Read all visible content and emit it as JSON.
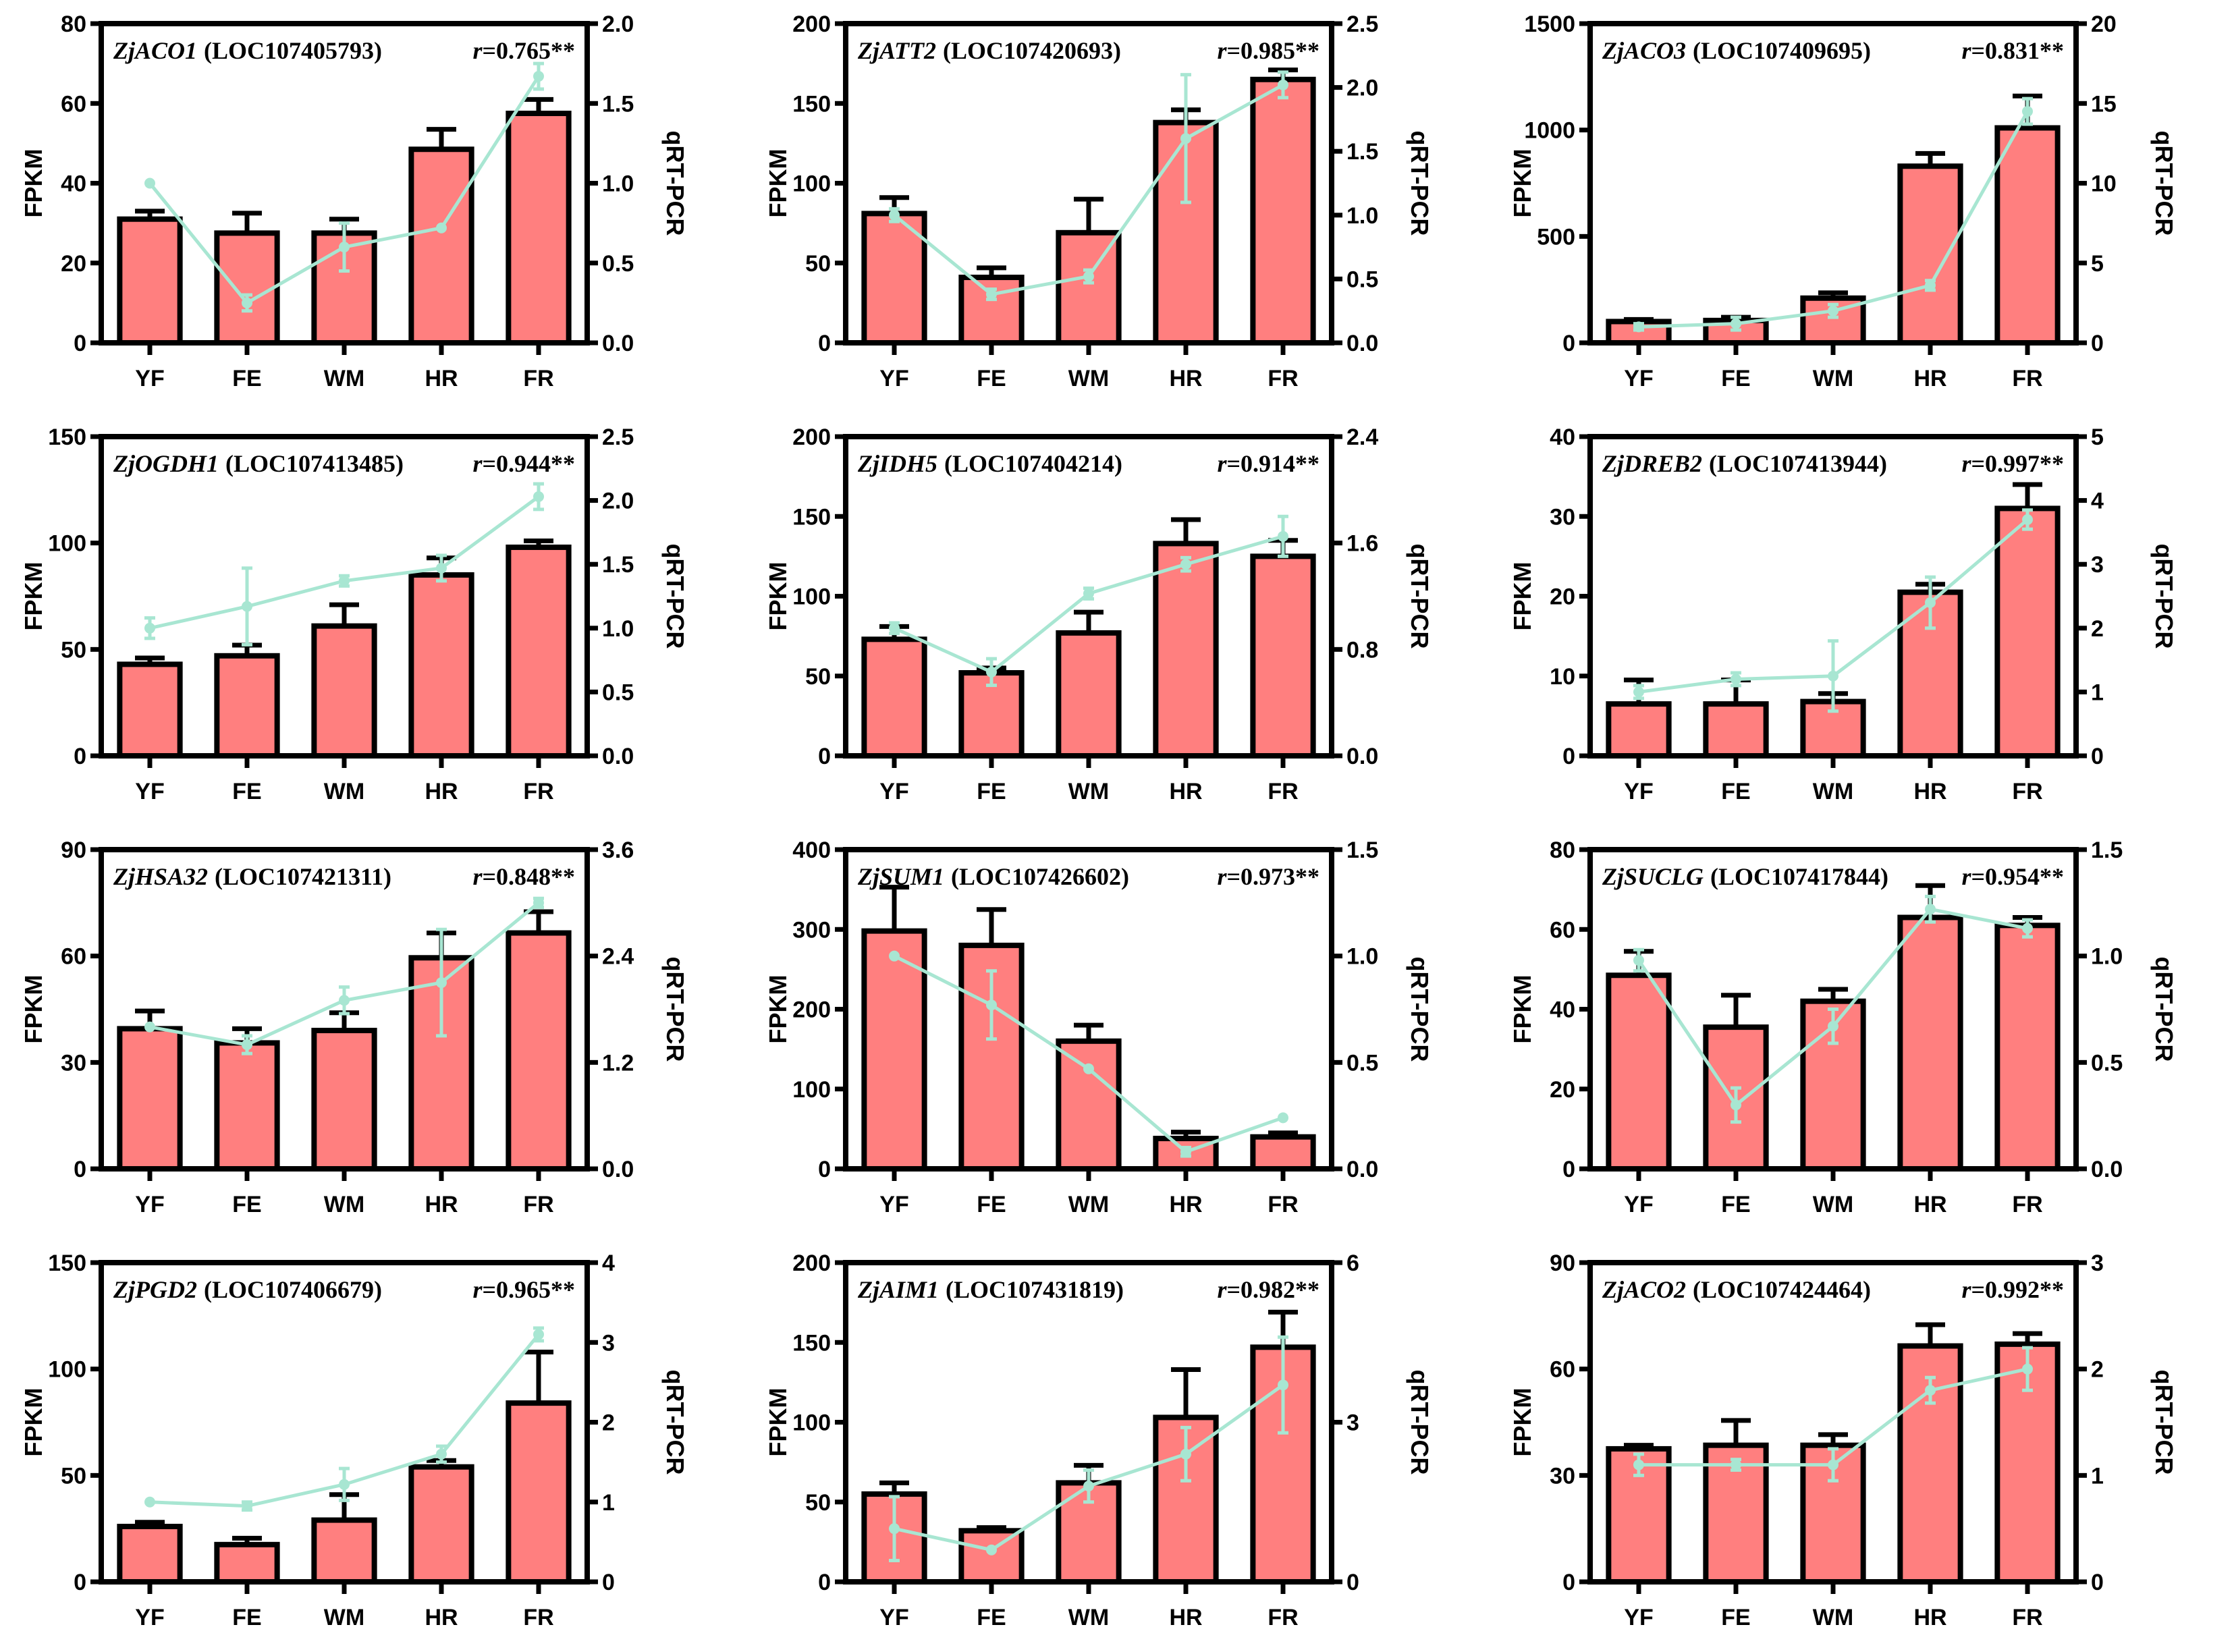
{
  "colors": {
    "bar": "#ff7f7f",
    "line": "#a8e6d2",
    "axis": "#000000"
  },
  "chart_data": [
    {
      "type": "bar+line",
      "gene": "ZjACO1",
      "locus": "(LOC107405793)",
      "r_label": "r",
      "r_value": "=0.765**",
      "categories": [
        "YF",
        "FE",
        "WM",
        "HR",
        "FR"
      ],
      "ylabel": "FPKM",
      "y2label": "qRT-PCR",
      "ylim": [
        0,
        80
      ],
      "yticks": [
        0,
        20,
        40,
        60,
        80
      ],
      "y2lim": [
        0,
        2.0
      ],
      "y2ticks": [
        "0.0",
        "0.5",
        "1.0",
        "1.5",
        "2.0"
      ],
      "fpkm": [
        31,
        27.5,
        27.5,
        48.5,
        57.5
      ],
      "fpkm_err": [
        2,
        5,
        3.5,
        5,
        3.5
      ],
      "qrt": [
        1.0,
        0.25,
        0.6,
        0.72,
        1.67
      ],
      "qrt_err": [
        0,
        0.05,
        0.15,
        0,
        0.08
      ]
    },
    {
      "type": "bar+line",
      "gene": "ZjATT2",
      "locus": "(LOC107420693)",
      "r_label": "r",
      "r_value": "=0.985**",
      "categories": [
        "YF",
        "FE",
        "WM",
        "HR",
        "FR"
      ],
      "ylabel": "FPKM",
      "y2label": "qRT-PCR",
      "ylim": [
        0,
        200
      ],
      "yticks": [
        0,
        50,
        100,
        150,
        200
      ],
      "y2lim": [
        0,
        2.5
      ],
      "y2ticks": [
        "0.0",
        "0.5",
        "1.0",
        "1.5",
        "2.0",
        "2.5"
      ],
      "fpkm": [
        81,
        41,
        69,
        138,
        165
      ],
      "fpkm_err": [
        10,
        6,
        21,
        8,
        6
      ],
      "qrt": [
        1.0,
        0.38,
        0.52,
        1.6,
        2.02
      ],
      "qrt_err": [
        0.05,
        0.04,
        0.05,
        0.5,
        0.1
      ]
    },
    {
      "type": "bar+line",
      "gene": "ZjACO3",
      "locus": "(LOC107409695)",
      "r_label": "r",
      "r_value": "=0.831**",
      "categories": [
        "YF",
        "FE",
        "WM",
        "HR",
        "FR"
      ],
      "ylabel": "FPKM",
      "y2label": "qRT-PCR",
      "ylim": [
        0,
        1500
      ],
      "yticks": [
        0,
        500,
        1000,
        1500
      ],
      "y2lim": [
        0,
        20
      ],
      "y2ticks": [
        "0",
        "5",
        "10",
        "15",
        "20"
      ],
      "fpkm": [
        100,
        105,
        210,
        830,
        1010
      ],
      "fpkm_err": [
        10,
        15,
        25,
        60,
        150
      ],
      "qrt": [
        1.0,
        1.2,
        2.0,
        3.6,
        14.5
      ],
      "qrt_err": [
        0.2,
        0.4,
        0.4,
        0.3,
        0.8
      ]
    },
    {
      "type": "bar+line",
      "gene": "ZjOGDH1",
      "locus": "(LOC107413485)",
      "r_label": "r",
      "r_value": "=0.944**",
      "categories": [
        "YF",
        "FE",
        "WM",
        "HR",
        "FR"
      ],
      "ylabel": "FPKM",
      "y2label": "qRT-PCR",
      "ylim": [
        0,
        150
      ],
      "yticks": [
        0,
        50,
        100,
        150
      ],
      "y2lim": [
        0,
        2.5
      ],
      "y2ticks": [
        "0.0",
        "0.5",
        "1.0",
        "1.5",
        "2.0",
        "2.5"
      ],
      "fpkm": [
        43,
        47,
        61,
        85,
        98
      ],
      "fpkm_err": [
        3,
        5,
        10,
        8,
        3
      ],
      "qrt": [
        1.0,
        1.17,
        1.37,
        1.47,
        2.03
      ],
      "qrt_err": [
        0.08,
        0.3,
        0.04,
        0.1,
        0.1
      ]
    },
    {
      "type": "bar+line",
      "gene": "ZjIDH5",
      "locus": "(LOC107404214)",
      "r_label": "r",
      "r_value": "=0.914**",
      "categories": [
        "YF",
        "FE",
        "WM",
        "HR",
        "FR"
      ],
      "ylabel": "FPKM",
      "y2label": "qRT-PCR",
      "ylim": [
        0,
        200
      ],
      "yticks": [
        0,
        50,
        100,
        150,
        200
      ],
      "y2lim": [
        0,
        2.4
      ],
      "y2ticks": [
        "0.0",
        "0.8",
        "1.6",
        "2.4"
      ],
      "fpkm": [
        73,
        52,
        77,
        133,
        125
      ],
      "fpkm_err": [
        8,
        3,
        13,
        15,
        10
      ],
      "qrt": [
        0.96,
        0.63,
        1.22,
        1.44,
        1.65
      ],
      "qrt_err": [
        0.04,
        0.1,
        0.04,
        0.05,
        0.15
      ]
    },
    {
      "type": "bar+line",
      "gene": "ZjDREB2",
      "locus": "(LOC107413944)",
      "r_label": "r",
      "r_value": "=0.997**",
      "categories": [
        "YF",
        "FE",
        "WM",
        "HR",
        "FR"
      ],
      "ylabel": "FPKM",
      "y2label": "qRT-PCR",
      "ylim": [
        0,
        40
      ],
      "yticks": [
        0,
        10,
        20,
        30,
        40
      ],
      "y2lim": [
        0,
        5
      ],
      "y2ticks": [
        "0",
        "1",
        "2",
        "3",
        "4",
        "5"
      ],
      "fpkm": [
        6.5,
        6.5,
        6.8,
        20.5,
        31
      ],
      "fpkm_err": [
        3,
        3,
        1,
        1,
        3
      ],
      "qrt": [
        1.0,
        1.2,
        1.25,
        2.4,
        3.7
      ],
      "qrt_err": [
        0.1,
        0.1,
        0.55,
        0.4,
        0.15
      ]
    },
    {
      "type": "bar+line",
      "gene": "ZjHSA32",
      "locus": "(LOC107421311)",
      "r_label": "r",
      "r_value": "=0.848**",
      "categories": [
        "YF",
        "FE",
        "WM",
        "HR",
        "FR"
      ],
      "ylabel": "FPKM",
      "y2label": "qRT-PCR",
      "ylim": [
        0,
        90
      ],
      "yticks": [
        0,
        30,
        60,
        90
      ],
      "y2lim": [
        0,
        3.6
      ],
      "y2ticks": [
        "0.0",
        "1.2",
        "2.4",
        "3.6"
      ],
      "fpkm": [
        39.5,
        35.5,
        39,
        59.5,
        66.5
      ],
      "fpkm_err": [
        5,
        4,
        5,
        7,
        6
      ],
      "qrt": [
        1.6,
        1.4,
        1.9,
        2.1,
        3.0
      ],
      "qrt_err": [
        0,
        0.1,
        0.15,
        0.6,
        0.05
      ]
    },
    {
      "type": "bar+line",
      "gene": "ZjSUM1",
      "locus": "(LOC107426602)",
      "r_label": "r",
      "r_value": "=0.973**",
      "categories": [
        "YF",
        "FE",
        "WM",
        "HR",
        "FR"
      ],
      "ylabel": "FPKM",
      "y2label": "qRT-PCR",
      "ylim": [
        0,
        400
      ],
      "yticks": [
        0,
        100,
        200,
        300,
        400
      ],
      "y2lim": [
        0,
        1.5
      ],
      "y2ticks": [
        "0.0",
        "0.5",
        "1.0",
        "1.5"
      ],
      "fpkm": [
        298,
        280,
        160,
        38,
        40
      ],
      "fpkm_err": [
        55,
        45,
        20,
        8,
        5
      ],
      "qrt": [
        1.0,
        0.77,
        0.47,
        0.08,
        0.24
      ],
      "qrt_err": [
        0,
        0.16,
        0,
        0.02,
        0
      ]
    },
    {
      "type": "bar+line",
      "gene": "ZjSUCLG",
      "locus": "(LOC107417844)",
      "r_label": "r",
      "r_value": "=0.954**",
      "categories": [
        "YF",
        "FE",
        "WM",
        "HR",
        "FR"
      ],
      "ylabel": "FPKM",
      "y2label": "qRT-PCR",
      "ylim": [
        0,
        80
      ],
      "yticks": [
        0,
        20,
        40,
        60,
        80
      ],
      "y2lim": [
        0,
        1.5
      ],
      "y2ticks": [
        "0.0",
        "0.5",
        "1.0",
        "1.5"
      ],
      "fpkm": [
        48.5,
        35.5,
        42,
        63,
        61
      ],
      "fpkm_err": [
        6,
        8,
        3,
        8,
        2
      ],
      "qrt": [
        0.98,
        0.3,
        0.67,
        1.22,
        1.13
      ],
      "qrt_err": [
        0.05,
        0.08,
        0.08,
        0.06,
        0.04
      ]
    },
    {
      "type": "bar+line",
      "gene": "ZjPGD2",
      "locus": "(LOC107406679)",
      "r_label": "r",
      "r_value": "=0.965**",
      "categories": [
        "YF",
        "FE",
        "WM",
        "HR",
        "FR"
      ],
      "ylabel": "FPKM",
      "y2label": "qRT-PCR",
      "ylim": [
        0,
        150
      ],
      "yticks": [
        0,
        50,
        100,
        150
      ],
      "y2lim": [
        0,
        4
      ],
      "y2ticks": [
        "0",
        "1",
        "2",
        "3",
        "4"
      ],
      "fpkm": [
        26,
        17.5,
        29,
        54,
        84
      ],
      "fpkm_err": [
        2,
        3,
        12,
        3,
        24
      ],
      "qrt": [
        1.0,
        0.95,
        1.22,
        1.6,
        3.1
      ],
      "qrt_err": [
        0,
        0.05,
        0.2,
        0.1,
        0.08
      ]
    },
    {
      "type": "bar+line",
      "gene": "ZjAIM1",
      "locus": "(LOC107431819)",
      "r_label": "r",
      "r_value": "=0.982**",
      "categories": [
        "YF",
        "FE",
        "WM",
        "HR",
        "FR"
      ],
      "ylabel": "FPKM",
      "y2label": "qRT-PCR",
      "ylim": [
        0,
        200
      ],
      "yticks": [
        0,
        50,
        100,
        150,
        200
      ],
      "y2lim": [
        0,
        6
      ],
      "y2ticks": [
        "0",
        "3",
        "6"
      ],
      "fpkm": [
        55,
        32,
        62,
        103,
        147
      ],
      "fpkm_err": [
        7,
        2,
        11,
        30,
        22
      ],
      "qrt": [
        1.0,
        0.6,
        1.8,
        2.4,
        3.7
      ],
      "qrt_err": [
        0.6,
        0,
        0.3,
        0.5,
        0.9
      ]
    },
    {
      "type": "bar+line",
      "gene": "ZjACO2",
      "locus": "(LOC107424464)",
      "r_label": "r",
      "r_value": "=0.992**",
      "categories": [
        "YF",
        "FE",
        "WM",
        "HR",
        "FR"
      ],
      "ylabel": "FPKM",
      "y2label": "qRT-PCR",
      "ylim": [
        0,
        90
      ],
      "yticks": [
        0,
        30,
        60,
        90
      ],
      "y2lim": [
        0,
        3
      ],
      "y2ticks": [
        "0",
        "1",
        "2",
        "3"
      ],
      "fpkm": [
        37.5,
        38.5,
        38.5,
        66.5,
        67
      ],
      "fpkm_err": [
        1,
        7,
        3,
        6,
        3
      ],
      "qrt": [
        1.1,
        1.1,
        1.1,
        1.8,
        2.0
      ],
      "qrt_err": [
        0.1,
        0.05,
        0.15,
        0.12,
        0.2
      ]
    }
  ]
}
